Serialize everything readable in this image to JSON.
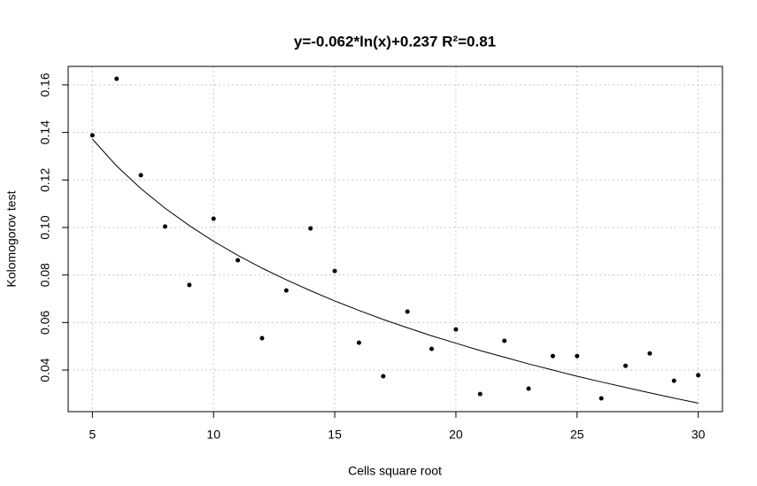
{
  "chart_data": {
    "type": "scatter",
    "title": "y=-0.062*ln(x)+0.237 R²=0.81",
    "xlabel": "Cells square root",
    "ylabel": "Kolomogorov test",
    "x": [
      5,
      6,
      7,
      8,
      9,
      10,
      11,
      12,
      13,
      14,
      15,
      16,
      17,
      18,
      19,
      20,
      21,
      22,
      23,
      24,
      25,
      26,
      27,
      28,
      29,
      30
    ],
    "series": [
      {
        "mode": "points",
        "color": "#000000",
        "values": [
          0.1388,
          0.1626,
          0.122,
          0.1004,
          0.0758,
          0.1037,
          0.0862,
          0.0534,
          0.0735,
          0.0996,
          0.0817,
          0.0515,
          0.0374,
          0.0646,
          0.0489,
          0.0571,
          0.0299,
          0.0523,
          0.0322,
          0.0459,
          0.0459,
          0.0281,
          0.0418,
          0.047,
          0.0355,
          0.0378
        ]
      },
      {
        "mode": "line",
        "color": "#000000",
        "values": [
          0.1372,
          0.1259,
          0.1164,
          0.1081,
          0.1008,
          0.0942,
          0.0883,
          0.0829,
          0.078,
          0.0734,
          0.0691,
          0.0651,
          0.0613,
          0.0578,
          0.0544,
          0.0513,
          0.0482,
          0.0454,
          0.0426,
          0.04,
          0.0374,
          0.035,
          0.0327,
          0.0304,
          0.0282,
          0.0261
        ]
      }
    ],
    "xlim": [
      4,
      31
    ],
    "ylim": [
      0.0225,
      0.1678
    ],
    "xticks": [
      5,
      10,
      15,
      20,
      25,
      30
    ],
    "yticks": [
      0.04,
      0.06,
      0.08,
      {
        "value": 0.1,
        "label": "0.10"
      },
      0.12,
      0.14,
      0.16
    ],
    "grid": true
  }
}
